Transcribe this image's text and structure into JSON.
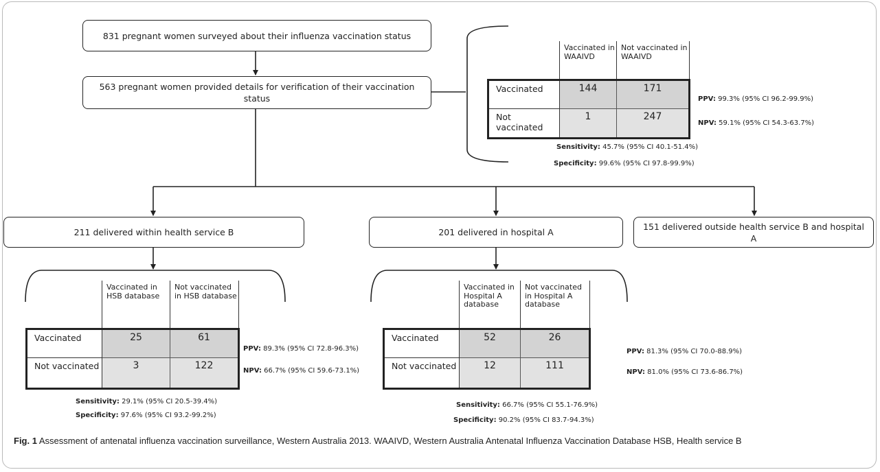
{
  "flow": {
    "surveyed": "831 pregnant women surveyed about their influenza vaccination status",
    "provided": "563 pregnant women provided details for verification of their vaccination status",
    "hsb": "211 delivered within health service B",
    "hospital_a": "201 delivered in hospital A",
    "outside": "151 delivered outside health service B and hospital A"
  },
  "tables": {
    "waaivd": {
      "col1": "Vaccinated in WAAIVD",
      "col2": "Not vaccinated in WAAIVD",
      "row1": "Vaccinated",
      "row2": "Not vaccinated",
      "r1c1": "144",
      "r1c2": "171",
      "r2c1": "1",
      "r2c2": "247",
      "ppv_label": "PPV:",
      "ppv": " 99.3% (95% CI 96.2-99.9%)",
      "npv_label": "NPV:",
      "npv": " 59.1% (95% CI 54.3-63.7%)",
      "sens_label": "Sensitivity:",
      "sens": " 45.7% (95% CI 40.1-51.4%)",
      "spec_label": "Specificity:",
      "spec": " 99.6% (95% CI 97.8-99.9%)"
    },
    "hsb": {
      "col1": "Vaccinated in HSB database",
      "col2": "Not vaccinated in HSB database",
      "row1": "Vaccinated",
      "row2": "Not vaccinated",
      "r1c1": "25",
      "r1c2": "61",
      "r2c1": "3",
      "r2c2": "122",
      "ppv_label": "PPV:",
      "ppv": " 89.3% (95% CI 72.8-96.3%)",
      "npv_label": "NPV:",
      "npv": " 66.7% (95% CI 59.6-73.1%)",
      "sens_label": "Sensitivity:",
      "sens": " 29.1% (95% CI 20.5-39.4%)",
      "spec_label": "Specificity:",
      "spec": " 97.6% (95% CI 93.2-99.2%)"
    },
    "hospital_a": {
      "col1": "Vaccinated in Hospital A database",
      "col2": "Not vaccinated in Hospital A database",
      "row1": "Vaccinated",
      "row2": "Not vaccinated",
      "r1c1": "52",
      "r1c2": "26",
      "r2c1": "12",
      "r2c2": "111",
      "ppv_label": "PPV:",
      "ppv": " 81.3% (95% CI 70.0-88.9%)",
      "npv_label": "NPV:",
      "npv": " 81.0% (95% CI 73.6-86.7%)",
      "sens_label": "Sensitivity:",
      "sens": " 66.7% (95% CI 55.1-76.9%)",
      "spec_label": "Specificity:",
      "spec": " 90.2% (95% CI 83.7-94.3%)"
    }
  },
  "caption": {
    "label": "Fig. 1",
    "text": " Assessment of antenatal influenza vaccination surveillance, Western Australia 2013. WAAIVD, Western Australia Antenatal Influenza Vaccination Database HSB, Health service B"
  }
}
